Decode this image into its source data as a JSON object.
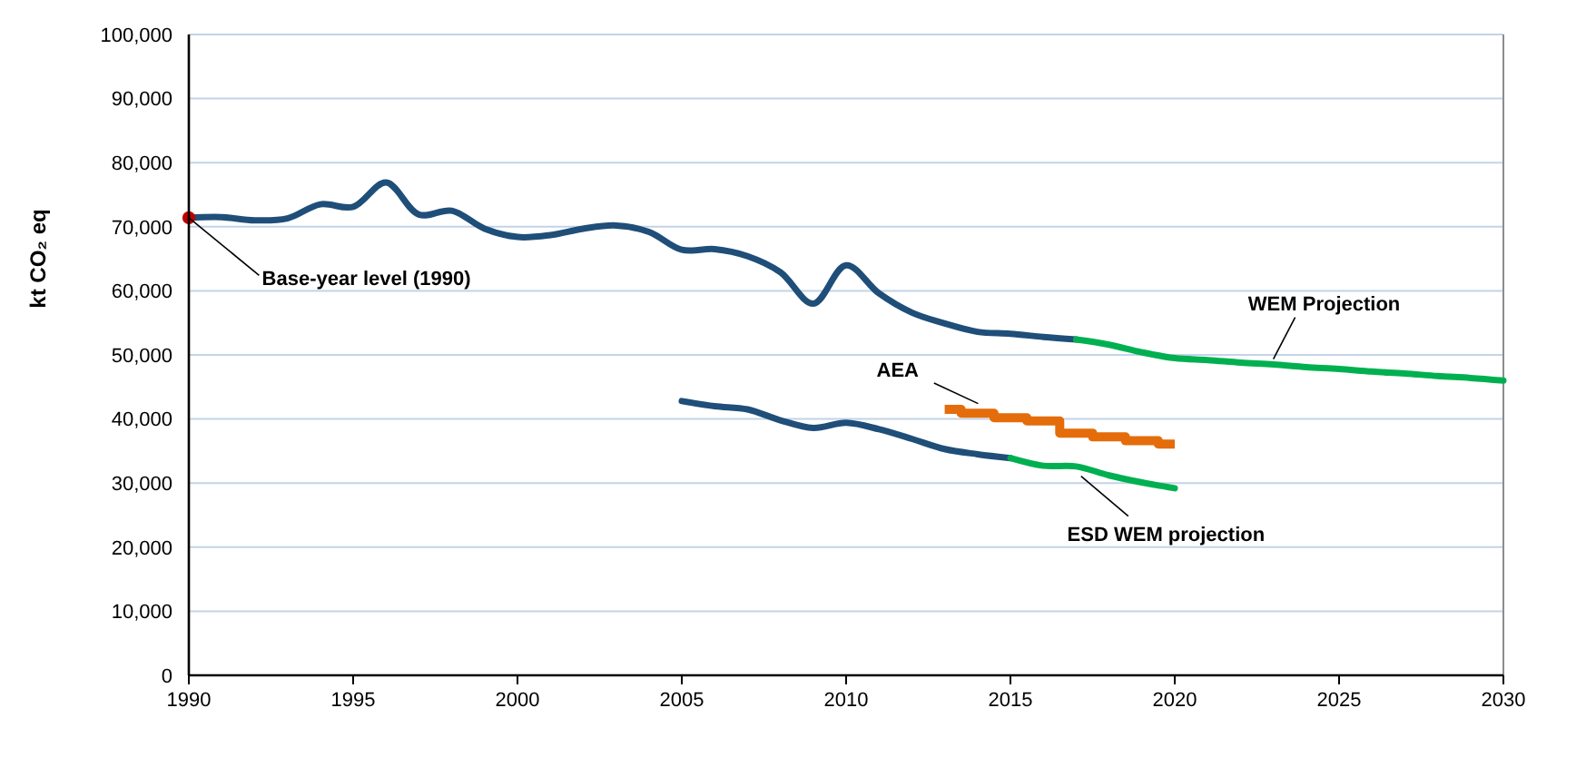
{
  "chart_data": {
    "type": "line",
    "ylabel": "kt CO₂ eq",
    "xlim": [
      1990,
      2030
    ],
    "xticks": [
      1990,
      1995,
      2000,
      2005,
      2010,
      2015,
      2020,
      2025,
      2030
    ],
    "ylim": [
      0,
      100000
    ],
    "yticks": [
      0,
      {
        "value": 10000,
        "label": "10,000"
      },
      {
        "value": 20000,
        "label": "20,000"
      },
      {
        "value": 30000,
        "label": "30,000"
      },
      {
        "value": 40000,
        "label": "40,000"
      },
      {
        "value": 50000,
        "label": "50,000"
      },
      {
        "value": 60000,
        "label": "60,000"
      },
      {
        "value": 70000,
        "label": "70,000"
      },
      {
        "value": 80000,
        "label": "80,000"
      },
      {
        "value": 90000,
        "label": "90,000"
      },
      {
        "value": 100000,
        "label": "100,000"
      }
    ],
    "grid": "y",
    "annotations": [
      {
        "text": "Base-year level (1990)",
        "x": 1990,
        "y": 71400
      }
    ],
    "series": [
      {
        "color": "#1f4e79",
        "x": [
          1990,
          1991,
          1992,
          1993,
          1994,
          1995,
          1996,
          1997,
          1998,
          1999,
          2000,
          2001,
          2002,
          2003,
          2004,
          2005,
          2006,
          2007,
          2008,
          2009,
          2010,
          2011,
          2012,
          2013,
          2014,
          2015,
          2016,
          2017
        ],
        "values": [
          71400,
          71500,
          71000,
          71300,
          73500,
          73100,
          76900,
          71900,
          72500,
          69700,
          68400,
          68700,
          69700,
          70200,
          69200,
          66400,
          66500,
          65400,
          62900,
          58000,
          64000,
          59600,
          56600,
          54900,
          53600,
          53300,
          52800,
          52400
        ]
      },
      {
        "name": "WEM Projection",
        "color": "#00b050",
        "x": [
          2017,
          2018,
          2019,
          2020,
          2021,
          2022,
          2023,
          2024,
          2025,
          2026,
          2027,
          2028,
          2029,
          2030
        ],
        "values": [
          52400,
          51600,
          50400,
          49500,
          49200,
          48800,
          48500,
          48100,
          47800,
          47400,
          47100,
          46700,
          46400,
          46000
        ]
      },
      {
        "color": "#1f4e79",
        "x": [
          2005,
          2006,
          2007,
          2008,
          2009,
          2010,
          2011,
          2012,
          2013,
          2014,
          2015
        ],
        "values": [
          42800,
          42000,
          41500,
          39800,
          38600,
          39400,
          38400,
          36900,
          35300,
          34500,
          33900
        ]
      },
      {
        "name": "ESD WEM projection",
        "color": "#00b050",
        "x": [
          2015,
          2016,
          2017,
          2018,
          2019,
          2020
        ],
        "values": [
          33900,
          32700,
          32600,
          31200,
          30100,
          29200
        ]
      },
      {
        "type": "step",
        "name": "AEA",
        "color": "#e46c0a",
        "x": [
          2013,
          2014,
          2015,
          2016,
          2017,
          2018,
          2019,
          2020
        ],
        "values": [
          41500,
          40900,
          40200,
          39700,
          37800,
          37200,
          36600,
          36100
        ]
      },
      {
        "type": "scatter",
        "marker": "circle",
        "color": "#c00000",
        "x": [
          1990
        ],
        "values": [
          71400
        ]
      }
    ]
  }
}
